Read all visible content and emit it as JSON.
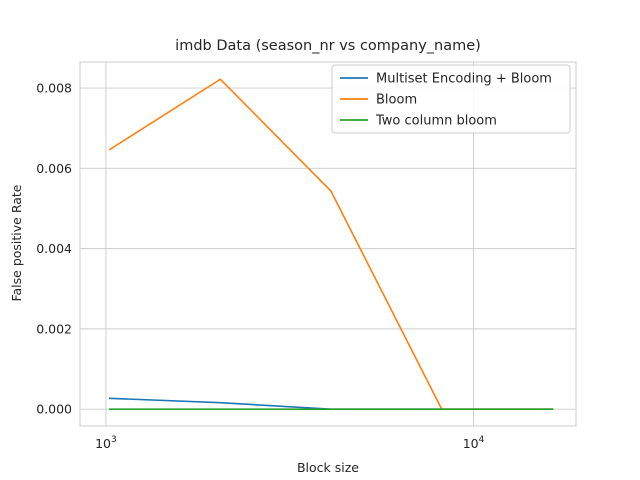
{
  "chart_data": {
    "type": "line",
    "title": "imdb Data (season_nr vs company_name)",
    "xlabel": "Block size",
    "ylabel": "False positive Rate",
    "xscale": "log",
    "xlim": [
      850,
      19000
    ],
    "ylim": [
      -0.00042,
      0.00865
    ],
    "x": [
      1024,
      2048,
      4096,
      8192,
      16384
    ],
    "series": [
      {
        "name": "Multiset Encoding + Bloom",
        "color": "#1f77b4",
        "values": [
          0.00027,
          0.00016,
          0.0,
          0.0,
          0.0
        ]
      },
      {
        "name": "Bloom",
        "color": "#ff7f0e",
        "values": [
          0.00647,
          0.00822,
          0.00543,
          0.0,
          0.0
        ]
      },
      {
        "name": "Two column bloom",
        "color": "#2ca02c",
        "values": [
          0.0,
          0.0,
          0.0,
          0.0,
          0.0
        ]
      }
    ],
    "y_ticks": [
      {
        "value": 0.0,
        "label": "0.000"
      },
      {
        "value": 0.002,
        "label": "0.002"
      },
      {
        "value": 0.004,
        "label": "0.004"
      },
      {
        "value": 0.006,
        "label": "0.006"
      },
      {
        "value": 0.008,
        "label": "0.008"
      }
    ],
    "x_ticks": [
      {
        "value": 1000,
        "base": "10",
        "exp": "3"
      },
      {
        "value": 10000,
        "base": "10",
        "exp": "4"
      }
    ],
    "grid": true,
    "legend_position": "top-right",
    "style": {
      "background": "#ffffff",
      "grid_color": "#cccccc",
      "spine_color": "#cccccc"
    }
  }
}
